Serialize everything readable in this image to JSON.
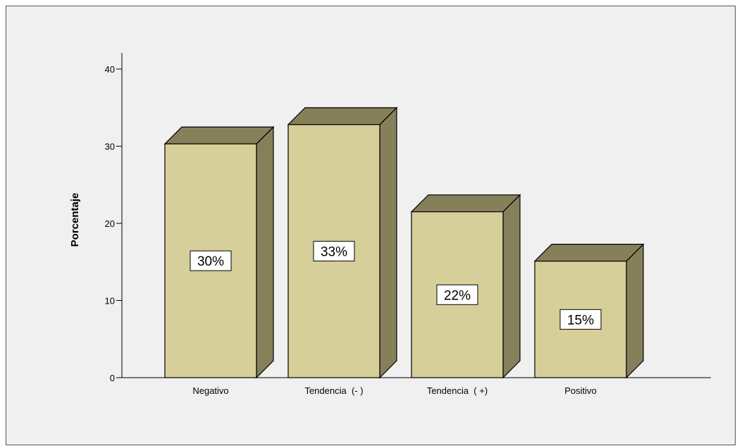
{
  "chart_data": {
    "type": "bar",
    "categories": [
      "Negativo",
      "Tendencia  (- )",
      "Tendencia  ( +)",
      "Positivo"
    ],
    "values": [
      30.3,
      32.8,
      21.5,
      15.1
    ],
    "data_labels": [
      "30%",
      "33%",
      "22%",
      "15%"
    ],
    "ylabel": "Porcentaje",
    "xlabel": "",
    "ylim": [
      0,
      40
    ],
    "yticks": [
      0,
      10,
      20,
      30,
      40
    ],
    "grid": false,
    "style": "3d",
    "colors": {
      "bar_front": "#d6cf99",
      "bar_top": "#85805a",
      "bar_side": "#85805a",
      "outline": "#000000",
      "background": "#f0f0f0"
    }
  }
}
